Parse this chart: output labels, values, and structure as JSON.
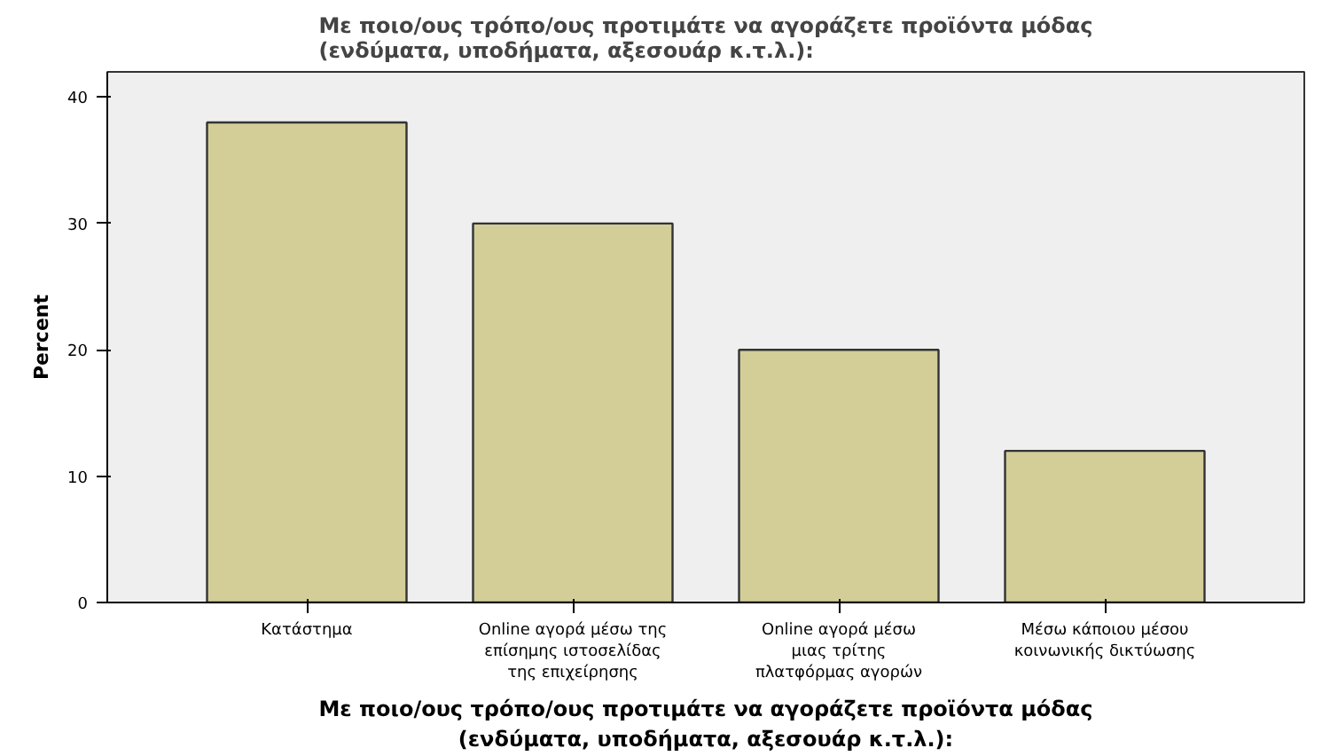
{
  "chart_data": {
    "type": "bar",
    "title": "Με ποιο/ους τρόπο/ους προτιμάτε να αγοράζετε προϊόντα μόδας\n(ενδύματα, υποδήματα, αξεσουάρ κ.τ.λ.):",
    "xlabel": "Με ποιο/ους τρόπο/ους προτιμάτε να αγοράζετε προϊόντα μόδας\n(ενδύματα, υποδήματα, αξεσουάρ κ.τ.λ.):",
    "ylabel": "Percent",
    "categories": [
      "Κατάστημα",
      "Online αγορά μέσω της\nεπίσημης ιστοσελίδας\nτης επιχείρησης",
      "Online αγορά μέσω\nμιας τρίτης\nπλατφόρμας αγορών",
      "Μέσω κάποιου μέσου\nκοινωνικής δικτύωσης"
    ],
    "values": [
      38,
      30,
      20,
      12
    ],
    "color": "#d3ce98",
    "ylim": [
      0,
      42
    ],
    "yticks": [
      0,
      10,
      20,
      30,
      40
    ],
    "grid": false
  }
}
